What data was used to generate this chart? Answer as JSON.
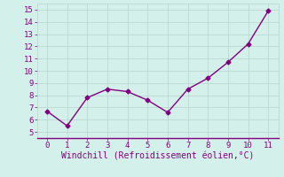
{
  "x": [
    0,
    1,
    2,
    3,
    4,
    5,
    6,
    7,
    8,
    9,
    10,
    11
  ],
  "y": [
    6.7,
    5.5,
    7.8,
    8.5,
    8.3,
    7.6,
    6.6,
    8.5,
    9.4,
    10.7,
    12.2,
    14.9
  ],
  "line_color": "#800080",
  "marker": "D",
  "marker_size": 2.5,
  "line_width": 1.0,
  "bg_color": "#d4f0eb",
  "grid_color": "#b8d4cf",
  "axis_color": "#800080",
  "xlabel": "Windchill (Refroidissement éolien,°C)",
  "xlabel_color": "#800080",
  "xlabel_fontsize": 7,
  "tick_color": "#800080",
  "tick_fontsize": 6.5,
  "xlim": [
    -0.5,
    11.5
  ],
  "ylim": [
    4.5,
    15.5
  ],
  "yticks": [
    5,
    6,
    7,
    8,
    9,
    10,
    11,
    12,
    13,
    14,
    15
  ],
  "xticks": [
    0,
    1,
    2,
    3,
    4,
    5,
    6,
    7,
    8,
    9,
    10,
    11
  ]
}
